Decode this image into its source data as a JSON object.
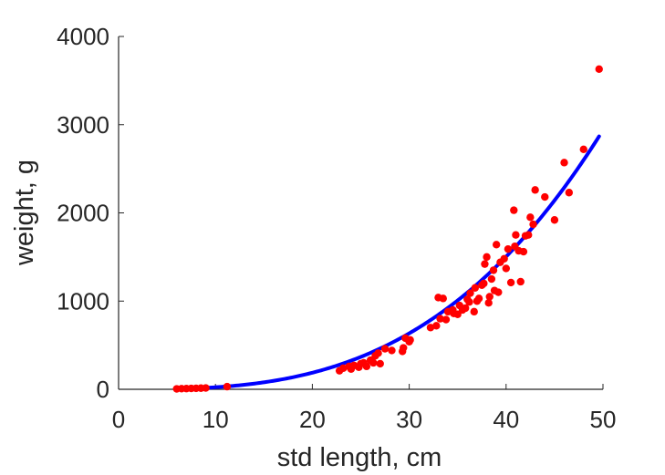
{
  "chart_data": {
    "type": "scatter",
    "xlabel": "std length, cm",
    "ylabel": "weight, g",
    "xlim": [
      0,
      50
    ],
    "ylim": [
      0,
      4000
    ],
    "xticks": [
      "0",
      "10",
      "20",
      "30",
      "40",
      "50"
    ],
    "yticks": [
      "0",
      "1000",
      "2000",
      "3000",
      "4000"
    ],
    "grid": false,
    "legend": "none",
    "colors": {
      "points": "#ff0000",
      "fit": "#0000ff",
      "axes": "#262626"
    },
    "series": [
      {
        "kind": "points",
        "points": [
          [
            6.0,
            5
          ],
          [
            6.5,
            7
          ],
          [
            7.0,
            8
          ],
          [
            7.5,
            10
          ],
          [
            8.0,
            11
          ],
          [
            8.5,
            13
          ],
          [
            9.0,
            15
          ],
          [
            11.2,
            30
          ],
          [
            22.8,
            210
          ],
          [
            23.2,
            240
          ],
          [
            23.8,
            260
          ],
          [
            24.0,
            230
          ],
          [
            24.3,
            270
          ],
          [
            24.8,
            250
          ],
          [
            25.0,
            290
          ],
          [
            25.3,
            300
          ],
          [
            25.6,
            260
          ],
          [
            26.0,
            330
          ],
          [
            26.3,
            300
          ],
          [
            26.5,
            380
          ],
          [
            26.8,
            410
          ],
          [
            27.0,
            290
          ],
          [
            27.5,
            460
          ],
          [
            28.2,
            440
          ],
          [
            29.3,
            430
          ],
          [
            29.4,
            470
          ],
          [
            29.6,
            580
          ],
          [
            30.0,
            540
          ],
          [
            30.1,
            560
          ],
          [
            32.2,
            700
          ],
          [
            32.8,
            720
          ],
          [
            33.0,
            1040
          ],
          [
            33.2,
            800
          ],
          [
            33.5,
            1030
          ],
          [
            33.8,
            790
          ],
          [
            34.0,
            880
          ],
          [
            34.5,
            900
          ],
          [
            34.6,
            860
          ],
          [
            35.0,
            850
          ],
          [
            35.2,
            950
          ],
          [
            35.5,
            900
          ],
          [
            35.8,
            920
          ],
          [
            36.0,
            1020
          ],
          [
            36.2,
            990
          ],
          [
            36.3,
            1090
          ],
          [
            36.7,
            880
          ],
          [
            36.8,
            1150
          ],
          [
            37.0,
            1000
          ],
          [
            37.2,
            1030
          ],
          [
            37.5,
            1180
          ],
          [
            37.7,
            1200
          ],
          [
            37.8,
            1420
          ],
          [
            38.0,
            1500
          ],
          [
            38.2,
            980
          ],
          [
            38.3,
            1050
          ],
          [
            38.5,
            1250
          ],
          [
            38.7,
            1350
          ],
          [
            38.8,
            1120
          ],
          [
            39.0,
            1640
          ],
          [
            39.2,
            1100
          ],
          [
            39.4,
            1440
          ],
          [
            39.8,
            1480
          ],
          [
            40.0,
            1370
          ],
          [
            40.2,
            1590
          ],
          [
            40.5,
            1210
          ],
          [
            40.8,
            2030
          ],
          [
            40.9,
            1620
          ],
          [
            41.0,
            1750
          ],
          [
            41.3,
            1570
          ],
          [
            41.5,
            1220
          ],
          [
            41.8,
            1560
          ],
          [
            42.0,
            1740
          ],
          [
            42.3,
            1750
          ],
          [
            42.5,
            1950
          ],
          [
            42.8,
            1870
          ],
          [
            43.0,
            2260
          ],
          [
            44.0,
            2180
          ],
          [
            45.0,
            1920
          ],
          [
            46.0,
            2570
          ],
          [
            46.5,
            2230
          ],
          [
            48.0,
            2720
          ],
          [
            49.6,
            3630
          ]
        ]
      },
      {
        "kind": "fit",
        "equation": "y = 0.0235 * x^3",
        "a": 0.0235,
        "b": 3,
        "x_range": [
          8,
          49.6
        ]
      }
    ]
  }
}
